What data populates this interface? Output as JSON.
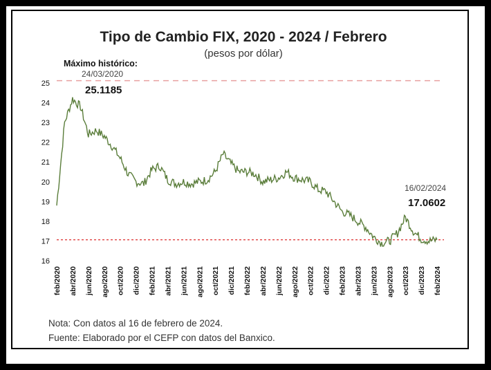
{
  "chart_data": {
    "type": "line",
    "title": "Tipo de Cambio FIX, 2020 - 2024 / Febrero",
    "subtitle": "(pesos por dólar)",
    "ylim": [
      16,
      25
    ],
    "yticks": [
      16,
      17,
      18,
      19,
      20,
      21,
      22,
      23,
      24,
      25
    ],
    "xtick_labels": [
      "feb/2020",
      "abr/2020",
      "jun/2020",
      "ago/2020",
      "oct/2020",
      "dic/2020",
      "feb/2021",
      "abr/2021",
      "jun/2021",
      "ago/2021",
      "oct/2021",
      "dic/2021",
      "feb/2022",
      "abr/2022",
      "jun/2022",
      "ago/2022",
      "oct/2022",
      "dic/2022",
      "feb/2023",
      "abr/2023",
      "jun/2023",
      "ago/2023",
      "oct/2023",
      "dic/2023",
      "feb/2024"
    ],
    "series": [
      {
        "color": "#5a7d3a",
        "x": [
          "feb/2020",
          "mar/2020",
          "abr/2020",
          "may/2020",
          "jun/2020",
          "jul/2020",
          "ago/2020",
          "sep/2020",
          "oct/2020",
          "nov/2020",
          "dic/2020",
          "ene/2021",
          "feb/2021",
          "mar/2021",
          "abr/2021",
          "may/2021",
          "jun/2021",
          "jul/2021",
          "ago/2021",
          "sep/2021",
          "oct/2021",
          "nov/2021",
          "dic/2021",
          "ene/2022",
          "feb/2022",
          "mar/2022",
          "abr/2022",
          "may/2022",
          "jun/2022",
          "jul/2022",
          "ago/2022",
          "sep/2022",
          "oct/2022",
          "nov/2022",
          "dic/2022",
          "ene/2023",
          "feb/2023",
          "mar/2023",
          "abr/2023",
          "may/2023",
          "jun/2023",
          "jul/2023",
          "ago/2023",
          "sep/2023",
          "oct/2023",
          "nov/2023",
          "dic/2023",
          "ene/2024",
          "feb/2024"
        ],
        "values": [
          18.8,
          23.0,
          24.2,
          23.8,
          22.4,
          22.6,
          22.3,
          21.8,
          21.2,
          20.4,
          20.0,
          19.9,
          20.6,
          20.8,
          20.1,
          19.9,
          20.0,
          19.9,
          20.0,
          20.1,
          20.5,
          21.4,
          20.9,
          20.5,
          20.5,
          20.4,
          20.0,
          20.1,
          20.2,
          20.5,
          20.2,
          20.1,
          20.0,
          19.6,
          19.5,
          19.0,
          18.5,
          18.3,
          18.0,
          17.7,
          17.2,
          16.9,
          17.0,
          17.4,
          18.2,
          17.5,
          17.1,
          17.0,
          17.06
        ]
      }
    ],
    "reference_lines": [
      {
        "value": 25.1185,
        "color": "#e8a0a0",
        "style": "dashed"
      },
      {
        "value": 17.0602,
        "color": "#e04040",
        "style": "dotted"
      }
    ],
    "annotations": {
      "max_label": "Máximo histórico:",
      "max_date": "24/03/2020",
      "max_value": "25.1185",
      "last_date": "16/02/2024",
      "last_value": "17.0602"
    },
    "notes": [
      "Nota: Con datos al 16 de febrero de 2024.",
      "Fuente: Elaborado por el CEFP con datos del Banxico."
    ]
  }
}
